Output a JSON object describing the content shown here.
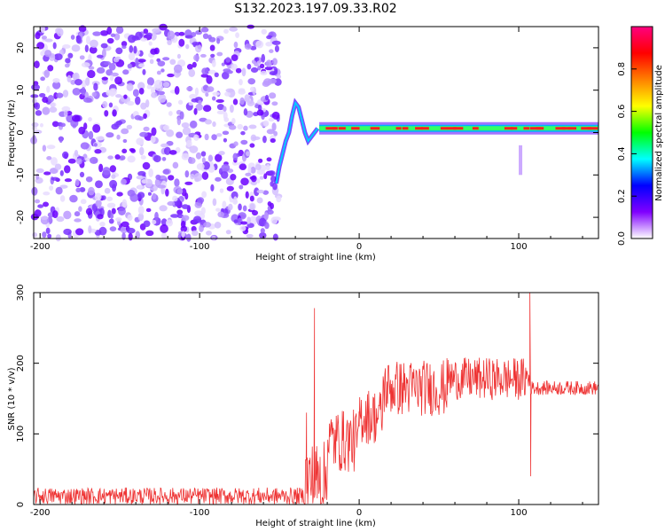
{
  "title": "S132.2023.197.09.33.R02",
  "chart_data": [
    {
      "type": "heatmap",
      "title": "S132.2023.197.09.33.R02",
      "xlabel": "Height of straight line (km)",
      "ylabel": "Frequency (Hz)",
      "xlim": [
        -204,
        150
      ],
      "ylim": [
        -25,
        25
      ],
      "x_ticks": [
        "-200",
        "-100",
        "0",
        "100"
      ],
      "y_ticks": [
        "-20",
        "-10",
        "0",
        "10",
        "20"
      ],
      "colorbar": {
        "label": "Normalized spectral amplitude",
        "range": [
          0,
          1
        ],
        "ticks": [
          "0.0",
          "0.2",
          "0.4",
          "0.6",
          "0.8"
        ],
        "colors": [
          "#ffffff",
          "#8000ff",
          "#0000ff",
          "#00ffff",
          "#00ff00",
          "#ffff00",
          "#ff8000",
          "#ff0000",
          "#ff0080"
        ]
      },
      "features": {
        "noise_region_x": [
          -204,
          -50
        ],
        "ridge_start_x": -50,
        "ridge_frequency_hz": 1,
        "ridge_x_range": [
          -25,
          150
        ]
      }
    },
    {
      "type": "line",
      "xlabel": "Height of straight line (km)",
      "ylabel": "SNR (10 * v/v)",
      "xlim": [
        -204,
        150
      ],
      "ylim": [
        0,
        300
      ],
      "x_ticks": [
        "-200",
        "-100",
        "0",
        "100"
      ],
      "y_ticks": [
        "0",
        "100",
        "200",
        "300"
      ],
      "color": "#ee3333",
      "segments": [
        {
          "x": [
            -204,
            -35
          ],
          "mean": 12,
          "noise": 12
        },
        {
          "x": [
            -35,
            -20
          ],
          "mean": 35,
          "noise": 55
        },
        {
          "x": [
            -20,
            0
          ],
          "mean": 90,
          "noise": 45
        },
        {
          "x": [
            0,
            15
          ],
          "mean": 125,
          "noise": 40
        },
        {
          "x": [
            15,
            55
          ],
          "mean": 165,
          "noise": 40
        },
        {
          "x": [
            55,
            107
          ],
          "mean": 178,
          "noise": 30
        },
        {
          "x": [
            107,
            150
          ],
          "mean": 165,
          "noise": 10
        }
      ],
      "spikes": [
        {
          "x": -28,
          "y": 278
        },
        {
          "x": -33,
          "y": 130
        },
        {
          "x": 107,
          "y": 300
        },
        {
          "x": 107.5,
          "y": 40
        }
      ]
    }
  ]
}
